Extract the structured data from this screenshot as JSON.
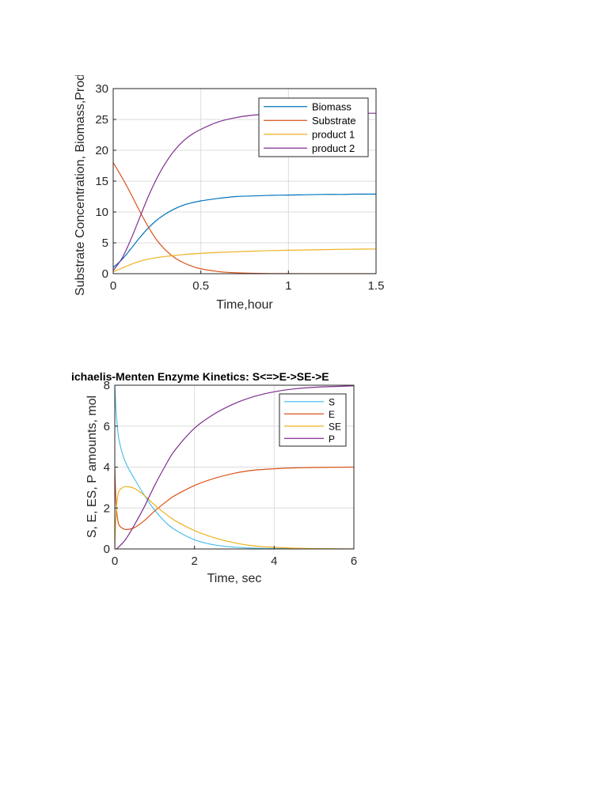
{
  "chart_data": [
    {
      "type": "line",
      "title": "",
      "xlabel": "Time,hour",
      "ylabel": "Substrate Concentration, Biomass,Produ",
      "xlim": [
        0,
        1.5
      ],
      "ylim": [
        0,
        30
      ],
      "xticks": [
        0,
        0.5,
        1,
        1.5
      ],
      "xtick_labels": [
        "0",
        "0.5",
        "1",
        "1.5"
      ],
      "yticks": [
        0,
        5,
        10,
        15,
        20,
        25,
        30
      ],
      "ytick_labels": [
        "0",
        "5",
        "10",
        "15",
        "20",
        "25",
        "30"
      ],
      "grid": true,
      "legend_position": "top-right",
      "x": [
        0,
        0.05,
        0.1,
        0.15,
        0.2,
        0.25,
        0.3,
        0.35,
        0.4,
        0.45,
        0.5,
        0.6,
        0.7,
        0.8,
        0.9,
        1.0,
        1.1,
        1.2,
        1.3,
        1.4,
        1.5
      ],
      "series": [
        {
          "name": "Biomass",
          "color": "#0072bd",
          "values": [
            1.0,
            2.3,
            4.0,
            5.8,
            7.4,
            8.7,
            9.7,
            10.5,
            11.1,
            11.5,
            11.8,
            12.2,
            12.5,
            12.6,
            12.7,
            12.75,
            12.8,
            12.85,
            12.85,
            12.9,
            12.9
          ]
        },
        {
          "name": "Substrate",
          "color": "#d95319",
          "values": [
            18.0,
            15.6,
            13.0,
            10.2,
            7.6,
            5.4,
            3.8,
            2.6,
            1.8,
            1.2,
            0.8,
            0.35,
            0.15,
            0.07,
            0.03,
            0.01,
            0.0,
            0.0,
            0.0,
            0.0,
            0.0
          ]
        },
        {
          "name": "product 1",
          "color": "#edb120",
          "values": [
            0.3,
            0.9,
            1.5,
            2.0,
            2.35,
            2.6,
            2.8,
            2.95,
            3.1,
            3.2,
            3.3,
            3.45,
            3.55,
            3.65,
            3.75,
            3.8,
            3.85,
            3.9,
            3.95,
            3.98,
            4.0
          ]
        },
        {
          "name": "product 2",
          "color": "#7e2f8e",
          "values": [
            0.5,
            2.5,
            5.5,
            9.0,
            12.5,
            15.5,
            18.0,
            20.0,
            21.5,
            22.6,
            23.4,
            24.6,
            25.3,
            25.7,
            25.9,
            26.0,
            26.0,
            26.0,
            26.0,
            26.0,
            26.0
          ]
        }
      ]
    },
    {
      "type": "line",
      "title": "ichaelis-Menten Enzyme Kinetics: S<=>E->SE->E",
      "xlabel": "Time, sec",
      "ylabel": "S, E, ES, P amounts, mol",
      "xlim": [
        0,
        6
      ],
      "ylim": [
        0,
        8
      ],
      "xticks": [
        0,
        2,
        4,
        6
      ],
      "xtick_labels": [
        "0",
        "2",
        "4",
        "6"
      ],
      "yticks": [
        0,
        2,
        4,
        6,
        8
      ],
      "ytick_labels": [
        "0",
        "2",
        "4",
        "6",
        "8"
      ],
      "grid": true,
      "legend_position": "top-right",
      "x": [
        0,
        0.02,
        0.05,
        0.1,
        0.2,
        0.3,
        0.5,
        0.75,
        1.0,
        1.25,
        1.5,
        2.0,
        2.5,
        3.0,
        3.5,
        4.0,
        4.5,
        5.0,
        6.0
      ],
      "series": [
        {
          "name": "S",
          "color": "#4dbeee",
          "values": [
            8.0,
            7.2,
            6.3,
            5.4,
            4.6,
            4.1,
            3.4,
            2.6,
            1.9,
            1.35,
            0.95,
            0.45,
            0.2,
            0.09,
            0.04,
            0.02,
            0.01,
            0.0,
            0.0
          ]
        },
        {
          "name": "E",
          "color": "#d95319",
          "values": [
            4.0,
            2.8,
            1.8,
            1.2,
            1.0,
            0.95,
            1.05,
            1.4,
            1.85,
            2.25,
            2.6,
            3.1,
            3.45,
            3.7,
            3.85,
            3.92,
            3.96,
            3.98,
            4.0
          ]
        },
        {
          "name": "SE",
          "color": "#edb120",
          "values": [
            0.0,
            1.2,
            2.2,
            2.8,
            3.0,
            3.05,
            2.95,
            2.6,
            2.15,
            1.75,
            1.4,
            0.9,
            0.55,
            0.3,
            0.15,
            0.08,
            0.04,
            0.02,
            0.0
          ]
        },
        {
          "name": "P",
          "color": "#7e2f8e",
          "values": [
            0.0,
            0.0,
            0.02,
            0.1,
            0.3,
            0.55,
            1.2,
            2.1,
            3.1,
            4.0,
            4.8,
            5.9,
            6.6,
            7.1,
            7.45,
            7.68,
            7.82,
            7.9,
            7.97
          ]
        }
      ]
    }
  ]
}
